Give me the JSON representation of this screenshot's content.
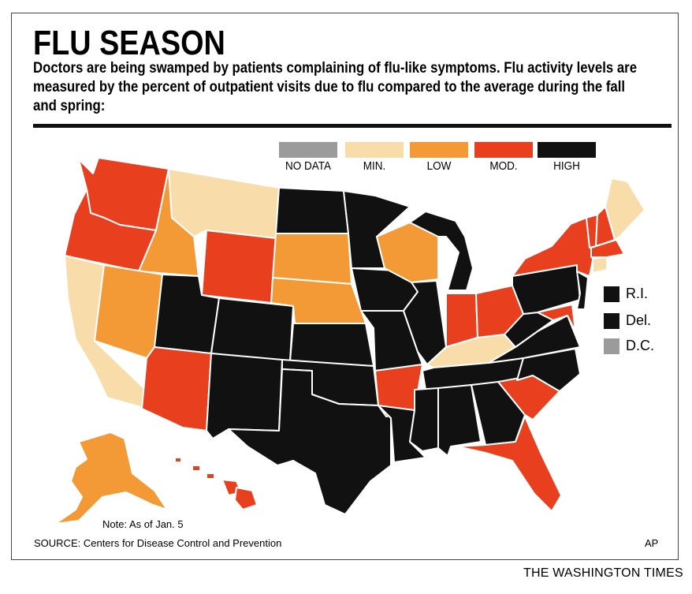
{
  "title": "FLU SEASON",
  "description": "Doctors are being swamped by patients complaining of flu-like symptoms. Flu activity levels are measured by the percent of outpatient visits due to flu compared to the average during the fall and spring:",
  "legend": [
    {
      "label": "NO DATA",
      "color": "#9b9b9b"
    },
    {
      "label": "MIN.",
      "color": "#f8dcaa"
    },
    {
      "label": "LOW",
      "color": "#f39a36"
    },
    {
      "label": "MOD.",
      "color": "#e8401f"
    },
    {
      "label": "HIGH",
      "color": "#111111"
    }
  ],
  "small_states": [
    {
      "label": "R.I.",
      "level": "HIGH"
    },
    {
      "label": "Del.",
      "level": "HIGH"
    },
    {
      "label": "D.C.",
      "level": "NO DATA"
    }
  ],
  "states": {
    "WA": "MOD.",
    "OR": "MOD.",
    "CA": "MIN.",
    "ID": "LOW",
    "NV": "LOW",
    "MT": "MIN.",
    "WY": "MOD.",
    "UT": "HIGH",
    "AZ": "MOD.",
    "CO": "HIGH",
    "NM": "HIGH",
    "ND": "HIGH",
    "SD": "LOW",
    "NE": "LOW",
    "KS": "HIGH",
    "OK": "HIGH",
    "TX": "HIGH",
    "MN": "HIGH",
    "IA": "HIGH",
    "MO": "HIGH",
    "AR": "MOD.",
    "LA": "HIGH",
    "WI": "LOW",
    "IL": "HIGH",
    "MI": "HIGH",
    "IN": "MOD.",
    "OH": "MOD.",
    "KY": "MIN.",
    "TN": "HIGH",
    "MS": "HIGH",
    "AL": "HIGH",
    "GA": "HIGH",
    "FL": "MOD.",
    "SC": "MOD.",
    "NC": "HIGH",
    "VA": "HIGH",
    "WV": "HIGH",
    "MD": "MOD.",
    "PA": "HIGH",
    "NJ": "HIGH",
    "NY": "MOD.",
    "CT": "MIN.",
    "MA": "MOD.",
    "VT": "MOD.",
    "NH": "MOD.",
    "ME": "MIN.",
    "AK": "LOW",
    "HI": "MOD."
  },
  "note": "Note: As of Jan. 5",
  "source": "SOURCE: Centers for Disease Control and Prevention",
  "agency": "AP",
  "publisher": "THE WASHINGTON TIMES"
}
